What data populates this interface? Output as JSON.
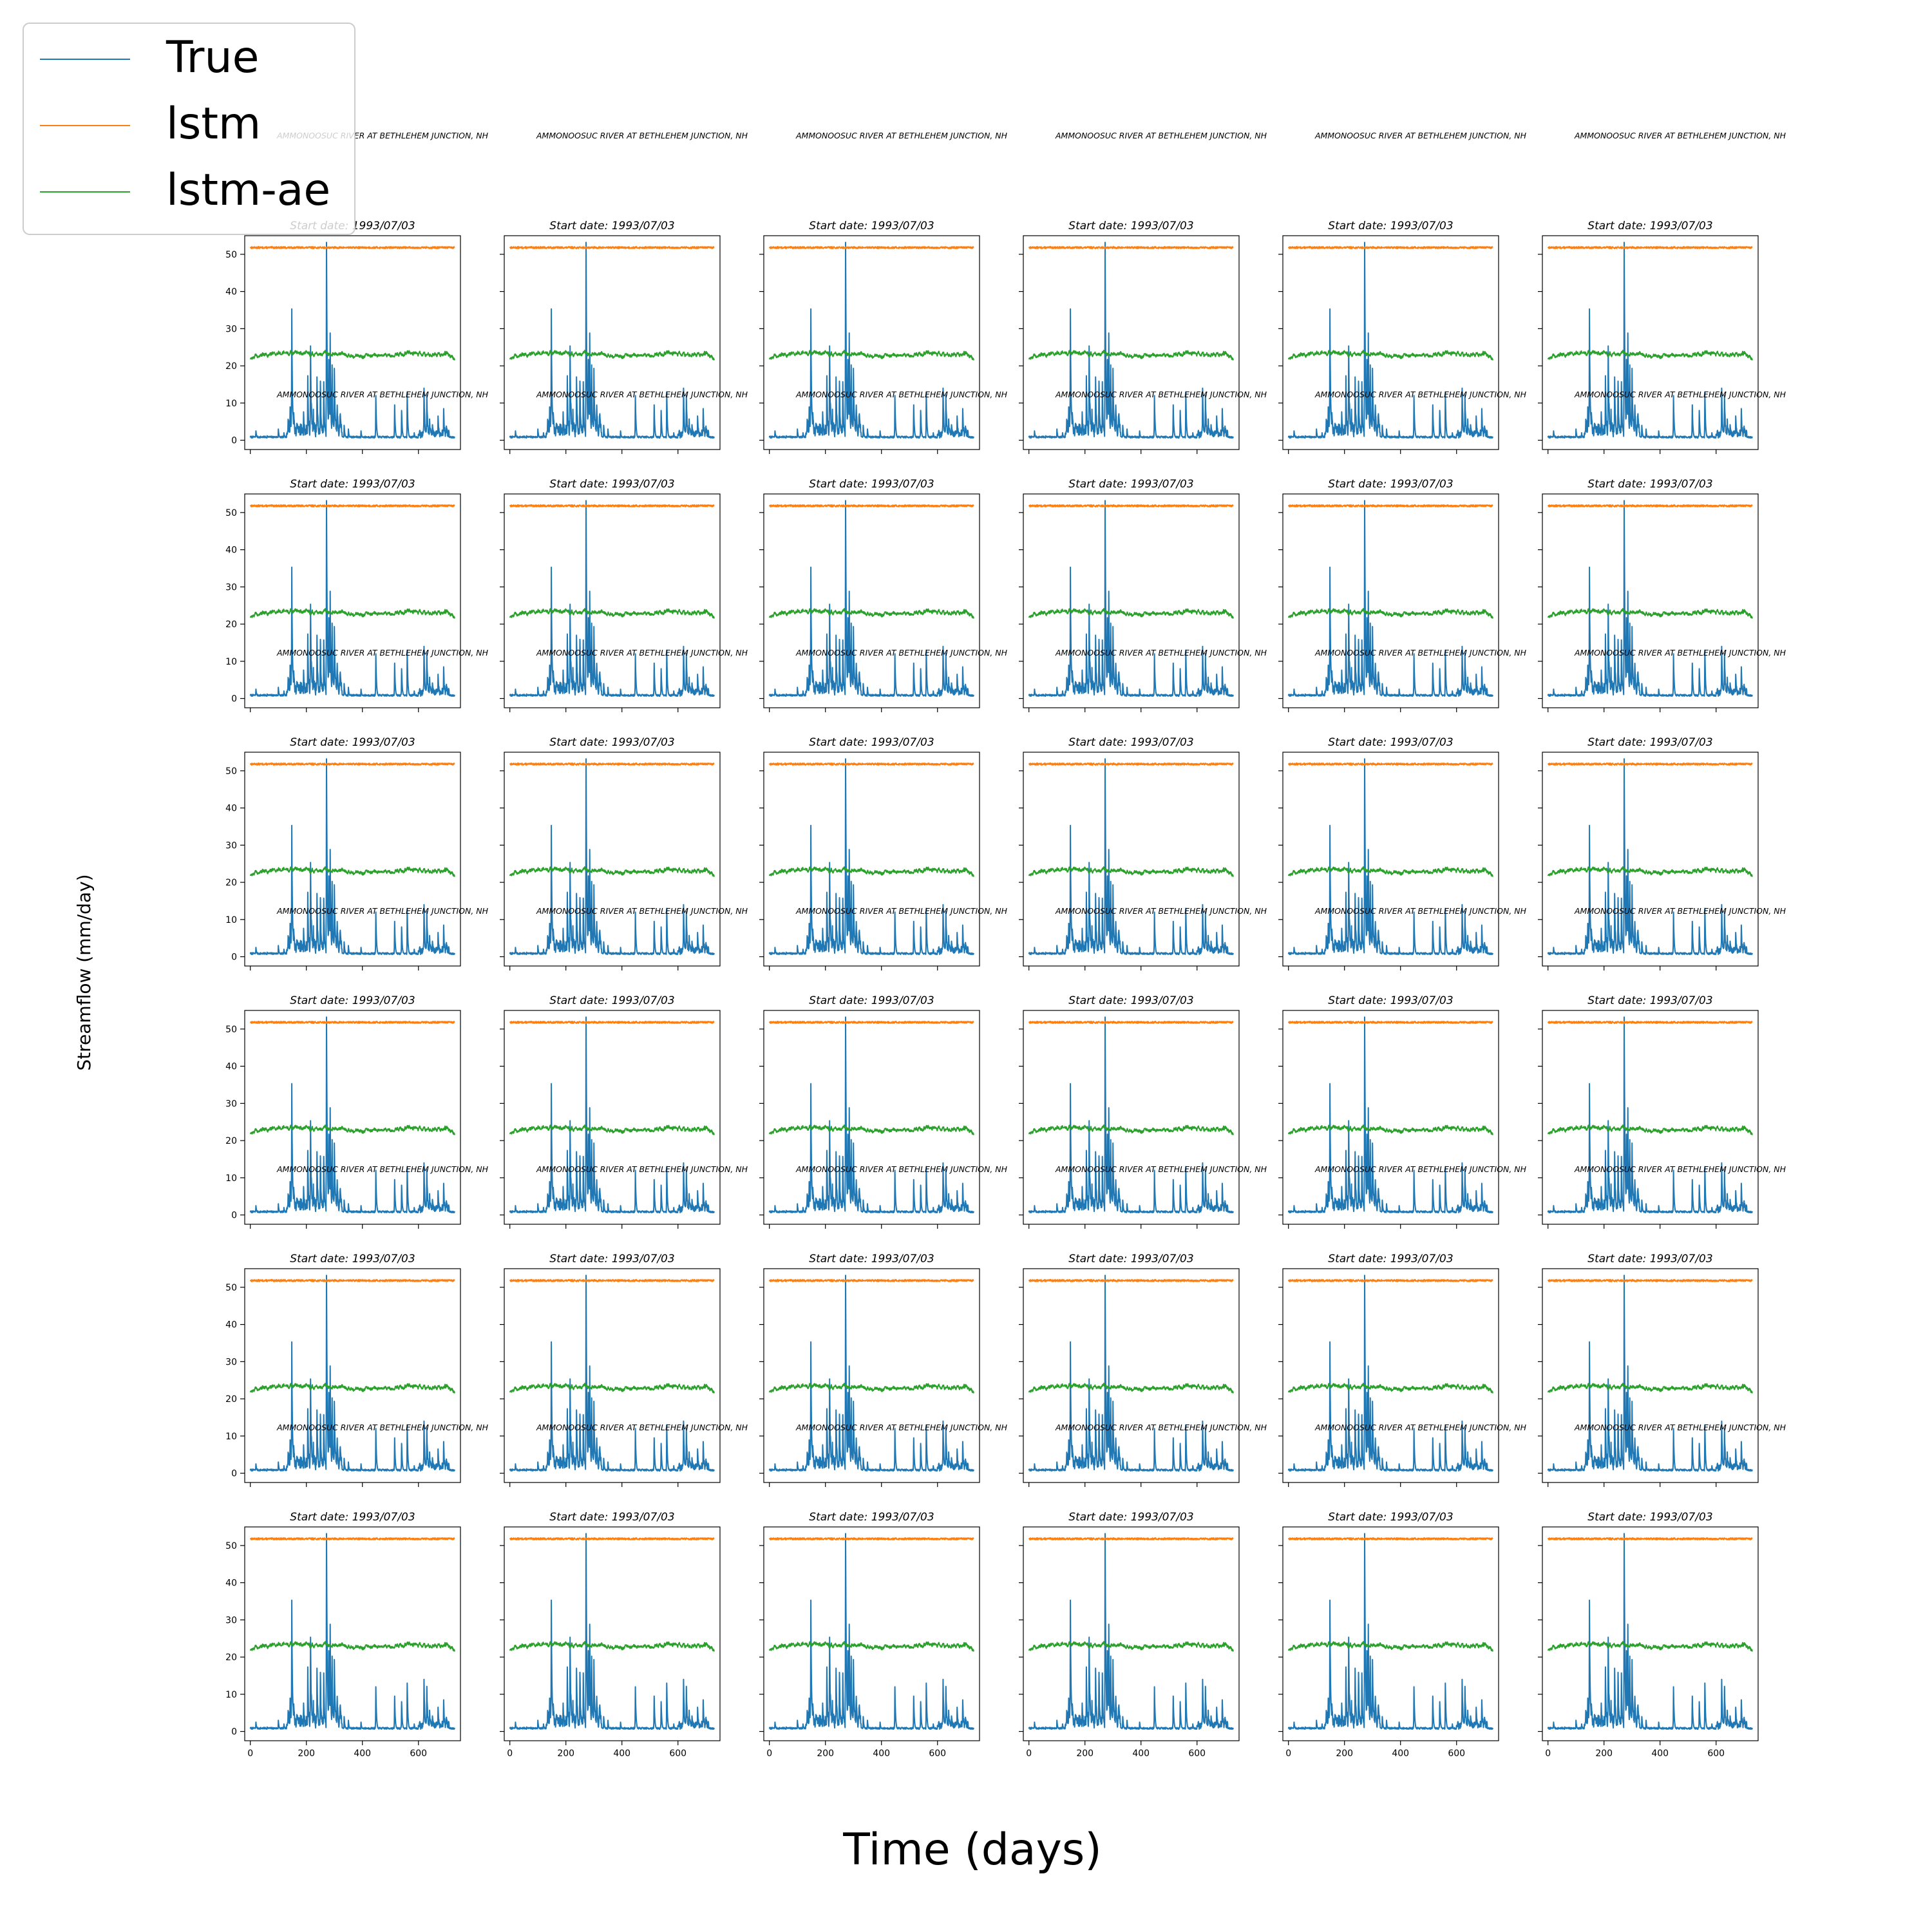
{
  "figure": {
    "xlabel": "Time (days)",
    "ylabel": "Streamflow (mm/day)",
    "legend_placement": "top-left"
  },
  "legend": {
    "entries": [
      {
        "label": "True",
        "color": "#1f77b4"
      },
      {
        "label": "lstm",
        "color": "#ff7f0e"
      },
      {
        "label": "lstm-ae",
        "color": "#2ca02c"
      }
    ]
  },
  "panels": {
    "rows": 6,
    "cols": 6,
    "subplot_title": "Start date: 1993/07/03",
    "station_label": "AMMONOOSUC RIVER AT BETHLEHEM JUNCTION, NH"
  },
  "chart_data": {
    "type": "line",
    "subplot_title": "Start date: 1993/07/03",
    "station_label": "AMMONOOSUC RIVER AT BETHLEHEM JUNCTION, NH",
    "xlabel": "Time (days)",
    "ylabel": "Streamflow (mm/day)",
    "xlim": [
      -20,
      750
    ],
    "ylim": [
      -2.5,
      55
    ],
    "xticks": [
      0,
      200,
      400,
      600
    ],
    "yticks": [
      0,
      10,
      20,
      30,
      40,
      50
    ],
    "n_days": 730,
    "grid": false,
    "note_panels": "36 identical subplots in a 6x6 grid; x tick labels shown on bottom row, y tick labels shown on left column",
    "series": [
      {
        "name": "True",
        "color": "#1f77b4",
        "baseline": 0.6,
        "peaks": [
          [
            20,
            2.5
          ],
          [
            60,
            1.2
          ],
          [
            100,
            3.0
          ],
          [
            120,
            2.0
          ],
          [
            135,
            4.5
          ],
          [
            142,
            8.5
          ],
          [
            148,
            33.0
          ],
          [
            155,
            5.5
          ],
          [
            165,
            3.5
          ],
          [
            175,
            2.5
          ],
          [
            190,
            5.0
          ],
          [
            205,
            14.5
          ],
          [
            215,
            24.0
          ],
          [
            225,
            5.0
          ],
          [
            238,
            14.5
          ],
          [
            250,
            14.0
          ],
          [
            262,
            13.0
          ],
          [
            272,
            51.5
          ],
          [
            280,
            20.0
          ],
          [
            285,
            26.0
          ],
          [
            292,
            17.0
          ],
          [
            300,
            16.0
          ],
          [
            310,
            9.0
          ],
          [
            320,
            6.0
          ],
          [
            335,
            4.0
          ],
          [
            350,
            3.0
          ],
          [
            395,
            2.5
          ],
          [
            448,
            12.0
          ],
          [
            515,
            9.5
          ],
          [
            540,
            8.0
          ],
          [
            560,
            13.0
          ],
          [
            585,
            2.0
          ],
          [
            620,
            12.5
          ],
          [
            630,
            12.0
          ],
          [
            640,
            4.5
          ],
          [
            650,
            3.0
          ],
          [
            670,
            5.5
          ],
          [
            690,
            7.0
          ],
          [
            700,
            3.0
          ]
        ]
      },
      {
        "name": "lstm",
        "color": "#ff7f0e",
        "mean": 51.8,
        "jitter": 0.25
      },
      {
        "name": "lstm-ae",
        "color": "#2ca02c",
        "levels": [
          [
            0,
            22.2
          ],
          [
            60,
            23.0
          ],
          [
            140,
            23.6
          ],
          [
            250,
            23.3
          ],
          [
            300,
            23.6
          ],
          [
            360,
            22.6
          ],
          [
            450,
            22.8
          ],
          [
            520,
            23.0
          ],
          [
            560,
            23.7
          ],
          [
            620,
            22.9
          ],
          [
            700,
            23.2
          ],
          [
            730,
            21.8
          ]
        ],
        "jitter": 0.7
      }
    ]
  }
}
